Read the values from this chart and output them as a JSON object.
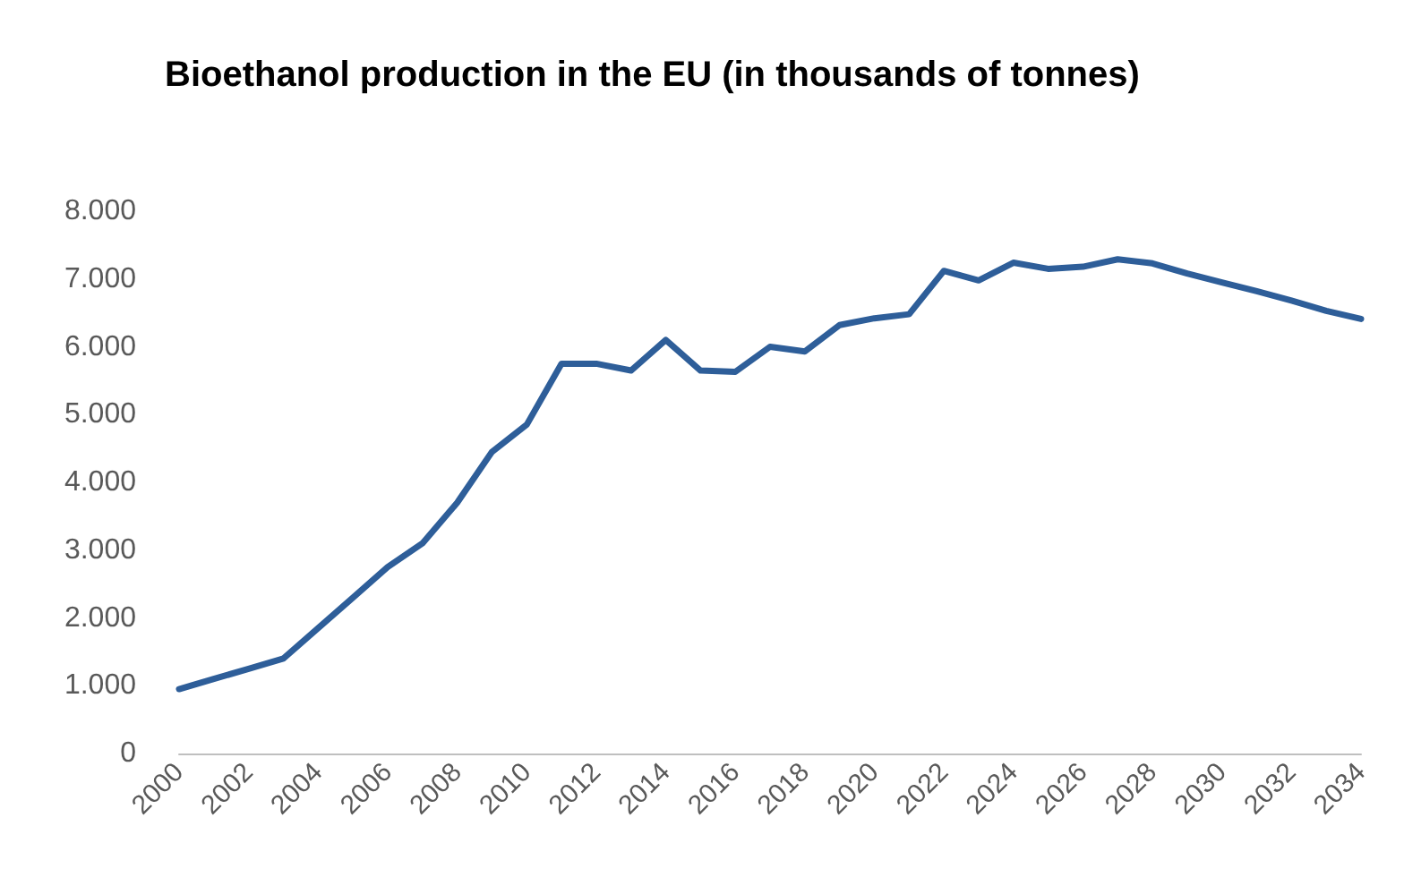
{
  "chart_data": {
    "type": "line",
    "title": "Bioethanol production in the EU (in thousands of tonnes)",
    "categories": [
      "2000",
      null,
      "2002",
      null,
      "2004",
      null,
      "2006",
      null,
      "2008",
      null,
      "2010",
      null,
      "2012",
      null,
      "2014",
      null,
      "2016",
      null,
      "2018",
      null,
      "2020",
      null,
      "2022",
      null,
      "2024",
      null,
      "2026",
      null,
      "2028",
      null,
      "2030",
      null,
      "2032",
      null,
      "2034"
    ],
    "series": [
      {
        "color": "#2e5e99",
        "values": [
          950,
          1100,
          1250,
          1400,
          1850,
          2300,
          2750,
          3100,
          3700,
          4450,
          4850,
          5750,
          5750,
          5650,
          6100,
          5650,
          5630,
          6000,
          5930,
          6320,
          6420,
          6480,
          7120,
          6980,
          7240,
          7150,
          7180,
          7290,
          7230,
          7080,
          6950,
          6820,
          6680,
          6530,
          6410
        ]
      }
    ],
    "ylim": [
      0,
      8000
    ],
    "yticks": [
      0,
      {
        "value": 1000,
        "label": "1.000"
      },
      {
        "value": 2000,
        "label": "2.000"
      },
      {
        "value": 3000,
        "label": "3.000"
      },
      {
        "value": 4000,
        "label": "4.000"
      },
      {
        "value": 5000,
        "label": "5.000"
      },
      {
        "value": 6000,
        "label": "6.000"
      },
      {
        "value": 7000,
        "label": "7.000"
      },
      {
        "value": 8000,
        "label": "8.000"
      }
    ],
    "grid": false,
    "marker": "none",
    "line_style": "solid"
  }
}
